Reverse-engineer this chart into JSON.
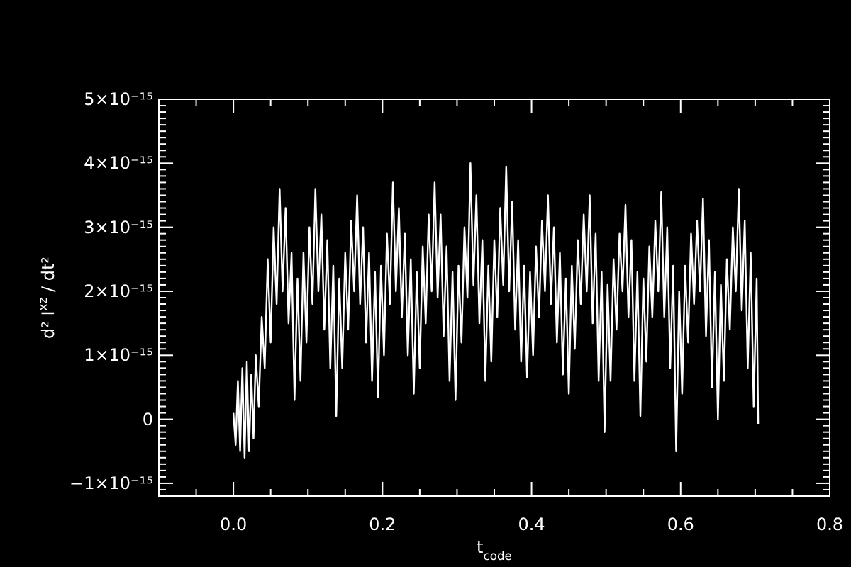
{
  "chart_data": {
    "type": "line",
    "xlabel": "t$_{code}$",
    "ylabel": "d² I$^{xz}$ / dt²",
    "xlim": [
      -0.1,
      0.8
    ],
    "ylim": [
      -1.2e-15,
      5e-15
    ],
    "xticks": [
      {
        "value": -0.05,
        "label": null
      },
      {
        "value": 0,
        "label": "0.0"
      },
      {
        "value": 0.05,
        "label": null
      },
      {
        "value": 0.1,
        "label": null
      },
      {
        "value": 0.15,
        "label": null
      },
      {
        "value": 0.2,
        "label": "0.2"
      },
      {
        "value": 0.25,
        "label": null
      },
      {
        "value": 0.3,
        "label": null
      },
      {
        "value": 0.35,
        "label": null
      },
      {
        "value": 0.4,
        "label": "0.4"
      },
      {
        "value": 0.45,
        "label": null
      },
      {
        "value": 0.5,
        "label": null
      },
      {
        "value": 0.55,
        "label": null
      },
      {
        "value": 0.6,
        "label": "0.6"
      },
      {
        "value": 0.65,
        "label": null
      },
      {
        "value": 0.7,
        "label": null
      },
      {
        "value": 0.75,
        "label": null
      },
      {
        "value": 0.8,
        "label": "0.8"
      }
    ],
    "yticks": [
      {
        "value": -1.1e-15,
        "label": null
      },
      {
        "value": -1e-15,
        "label": "−1×10⁻¹⁵"
      },
      {
        "value": -9e-16,
        "label": null
      },
      {
        "value": -8e-16,
        "label": null
      },
      {
        "value": -7e-16,
        "label": null
      },
      {
        "value": -6e-16,
        "label": null
      },
      {
        "value": -5e-16,
        "label": null
      },
      {
        "value": -4e-16,
        "label": null
      },
      {
        "value": -3e-16,
        "label": null
      },
      {
        "value": -2e-16,
        "label": null
      },
      {
        "value": -1e-16,
        "label": null
      },
      {
        "value": 0,
        "label": "0"
      },
      {
        "value": 1e-16,
        "label": null
      },
      {
        "value": 2e-16,
        "label": null
      },
      {
        "value": 3e-16,
        "label": null
      },
      {
        "value": 4e-16,
        "label": null
      },
      {
        "value": 5e-16,
        "label": null
      },
      {
        "value": 6e-16,
        "label": null
      },
      {
        "value": 7e-16,
        "label": null
      },
      {
        "value": 8e-16,
        "label": null
      },
      {
        "value": 9e-16,
        "label": null
      },
      {
        "value": 1e-15,
        "label": "1×10⁻¹⁵"
      },
      {
        "value": 1.1e-15,
        "label": null
      },
      {
        "value": 1.2e-15,
        "label": null
      },
      {
        "value": 1.3e-15,
        "label": null
      },
      {
        "value": 1.4e-15,
        "label": null
      },
      {
        "value": 1.5e-15,
        "label": null
      },
      {
        "value": 1.6e-15,
        "label": null
      },
      {
        "value": 1.7e-15,
        "label": null
      },
      {
        "value": 1.8e-15,
        "label": null
      },
      {
        "value": 1.9e-15,
        "label": null
      },
      {
        "value": 2e-15,
        "label": "2×10⁻¹⁵"
      },
      {
        "value": 2.1e-15,
        "label": null
      },
      {
        "value": 2.2e-15,
        "label": null
      },
      {
        "value": 2.3e-15,
        "label": null
      },
      {
        "value": 2.4e-15,
        "label": null
      },
      {
        "value": 2.5e-15,
        "label": null
      },
      {
        "value": 2.6e-15,
        "label": null
      },
      {
        "value": 2.7e-15,
        "label": null
      },
      {
        "value": 2.8e-15,
        "label": null
      },
      {
        "value": 2.9e-15,
        "label": null
      },
      {
        "value": 3e-15,
        "label": "3×10⁻¹⁵"
      },
      {
        "value": 3.1e-15,
        "label": null
      },
      {
        "value": 3.2e-15,
        "label": null
      },
      {
        "value": 3.3e-15,
        "label": null
      },
      {
        "value": 3.4e-15,
        "label": null
      },
      {
        "value": 3.5e-15,
        "label": null
      },
      {
        "value": 3.6e-15,
        "label": null
      },
      {
        "value": 3.7e-15,
        "label": null
      },
      {
        "value": 3.8e-15,
        "label": null
      },
      {
        "value": 3.9e-15,
        "label": null
      },
      {
        "value": 4e-15,
        "label": "4×10⁻¹⁵"
      },
      {
        "value": 4.1e-15,
        "label": null
      },
      {
        "value": 4.2e-15,
        "label": null
      },
      {
        "value": 4.3e-15,
        "label": null
      },
      {
        "value": 4.4e-15,
        "label": null
      },
      {
        "value": 4.5e-15,
        "label": null
      },
      {
        "value": 4.6e-15,
        "label": null
      },
      {
        "value": 4.7e-15,
        "label": null
      },
      {
        "value": 4.8e-15,
        "label": null
      },
      {
        "value": 4.9e-15,
        "label": null
      },
      {
        "value": 5e-15,
        "label": "5×10⁻¹⁵"
      }
    ],
    "x": [
      0,
      0.003,
      0.006,
      0.009,
      0.012,
      0.015,
      0.018,
      0.021,
      0.024,
      0.027,
      0.03,
      0.034,
      0.038,
      0.042,
      0.046,
      0.05,
      0.054,
      0.058,
      0.062,
      0.066,
      0.07,
      0.074,
      0.078,
      0.082,
      0.086,
      0.09,
      0.094,
      0.098,
      0.102,
      0.106,
      0.11,
      0.114,
      0.118,
      0.122,
      0.126,
      0.13,
      0.134,
      0.138,
      0.142,
      0.146,
      0.15,
      0.154,
      0.158,
      0.162,
      0.166,
      0.17,
      0.174,
      0.178,
      0.182,
      0.186,
      0.19,
      0.194,
      0.198,
      0.202,
      0.206,
      0.21,
      0.214,
      0.218,
      0.222,
      0.226,
      0.23,
      0.234,
      0.238,
      0.242,
      0.246,
      0.25,
      0.254,
      0.258,
      0.262,
      0.266,
      0.27,
      0.274,
      0.278,
      0.282,
      0.286,
      0.29,
      0.294,
      0.298,
      0.302,
      0.306,
      0.31,
      0.314,
      0.318,
      0.322,
      0.326,
      0.33,
      0.334,
      0.338,
      0.342,
      0.346,
      0.35,
      0.354,
      0.358,
      0.362,
      0.366,
      0.37,
      0.374,
      0.378,
      0.382,
      0.386,
      0.39,
      0.394,
      0.398,
      0.402,
      0.406,
      0.41,
      0.414,
      0.418,
      0.422,
      0.426,
      0.43,
      0.434,
      0.438,
      0.442,
      0.446,
      0.45,
      0.454,
      0.458,
      0.462,
      0.466,
      0.47,
      0.474,
      0.478,
      0.482,
      0.486,
      0.49,
      0.494,
      0.498,
      0.502,
      0.506,
      0.51,
      0.514,
      0.518,
      0.522,
      0.526,
      0.53,
      0.534,
      0.538,
      0.542,
      0.546,
      0.55,
      0.554,
      0.558,
      0.562,
      0.566,
      0.57,
      0.574,
      0.578,
      0.582,
      0.586,
      0.59,
      0.594,
      0.598,
      0.602,
      0.606,
      0.61,
      0.614,
      0.618,
      0.622,
      0.626,
      0.63,
      0.634,
      0.638,
      0.642,
      0.646,
      0.65,
      0.654,
      0.658,
      0.662,
      0.666,
      0.67,
      0.674,
      0.678,
      0.682,
      0.686,
      0.69,
      0.694,
      0.698,
      0.702,
      0.704
    ],
    "series": [
      {
        "color": "#ffffff",
        "values": [
          1e-16,
          -4e-16,
          6e-16,
          -5e-16,
          8e-16,
          -6e-16,
          9e-16,
          -5e-16,
          7e-16,
          -3e-16,
          1e-15,
          2e-16,
          1.6e-15,
          8e-16,
          2.5e-15,
          1.2e-15,
          3e-15,
          1.8e-15,
          3.6e-15,
          2e-15,
          3.3e-15,
          1.5e-15,
          2.6e-15,
          3e-16,
          2.2e-15,
          6e-16,
          2.6e-15,
          1.2e-15,
          3e-15,
          1.8e-15,
          3.6e-15,
          2e-15,
          3.2e-15,
          1.4e-15,
          2.8e-15,
          8e-16,
          2.4e-15,
          5e-17,
          2.2e-15,
          8e-16,
          2.6e-15,
          1.4e-15,
          3.1e-15,
          2e-15,
          3.5e-15,
          1.8e-15,
          3e-15,
          1.2e-15,
          2.6e-15,
          6e-16,
          2.3e-15,
          3.5e-16,
          2.4e-15,
          1e-15,
          2.9e-15,
          1.8e-15,
          3.7e-15,
          2e-15,
          3.3e-15,
          1.6e-15,
          2.9e-15,
          1e-15,
          2.5e-15,
          4e-16,
          2.3e-15,
          8e-16,
          2.7e-15,
          1.5e-15,
          3.2e-15,
          2e-15,
          3.7e-15,
          1.9e-15,
          3.2e-15,
          1.3e-15,
          2.7e-15,
          6e-16,
          2.3e-15,
          3e-16,
          2.4e-15,
          1.2e-15,
          3e-15,
          1.9e-15,
          4e-15,
          2.1e-15,
          3.5e-15,
          1.5e-15,
          2.8e-15,
          6e-16,
          2.4e-15,
          9e-16,
          2.8e-15,
          1.6e-15,
          3.3e-15,
          2.1e-15,
          3.95e-15,
          2e-15,
          3.4e-15,
          1.4e-15,
          2.8e-15,
          9e-16,
          2.4e-15,
          6.5e-16,
          2.3e-15,
          1e-15,
          2.7e-15,
          1.6e-15,
          3.1e-15,
          2e-15,
          3.5e-15,
          1.8e-15,
          3e-15,
          1.2e-15,
          2.6e-15,
          7e-16,
          2.2e-15,
          4e-16,
          2.4e-15,
          1.1e-15,
          2.8e-15,
          1.8e-15,
          3.2e-15,
          2e-15,
          3.5e-15,
          1.5e-15,
          2.9e-15,
          6e-16,
          2.3e-15,
          -2e-16,
          2.1e-15,
          6e-16,
          2.5e-15,
          1.4e-15,
          2.9e-15,
          2e-15,
          3.35e-15,
          1.6e-15,
          2.8e-15,
          6e-16,
          2.3e-15,
          5e-17,
          2.2e-15,
          9e-16,
          2.7e-15,
          1.6e-15,
          3.1e-15,
          2e-15,
          3.55e-15,
          1.6e-15,
          3e-15,
          8e-16,
          2.4e-15,
          -5e-16,
          2e-15,
          4e-16,
          2.4e-15,
          1.2e-15,
          2.9e-15,
          1.8e-15,
          3.1e-15,
          2e-15,
          3.45e-15,
          1.3e-15,
          2.8e-15,
          5e-16,
          2.3e-15,
          0,
          2.1e-15,
          6e-16,
          2.5e-15,
          1.4e-15,
          3e-15,
          2e-15,
          3.6e-15,
          1.7e-15,
          3.1e-15,
          8e-16,
          2.6e-15,
          2e-16,
          2.2e-15,
          -7e-17
        ]
      }
    ]
  }
}
